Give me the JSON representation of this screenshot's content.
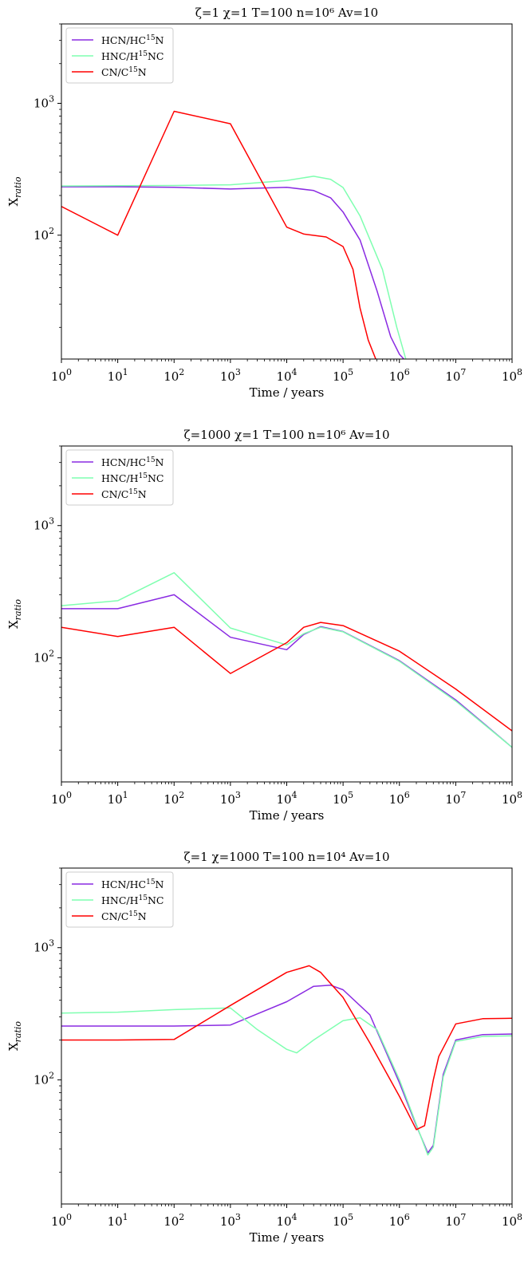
{
  "chart_data": [
    {
      "type": "line",
      "title": "ζ=1 χ=1 T=100 n=10⁶  Av=10",
      "xlabel": "Time / years",
      "ylabel": "X",
      "ylabel_sub": "ratio",
      "x_scale": "log",
      "y_scale": "log",
      "xlim": [
        1,
        100000000
      ],
      "ylim": [
        11.5,
        4000
      ],
      "x_tick_exponents": [
        0,
        1,
        2,
        3,
        4,
        5,
        6,
        7,
        8
      ],
      "y_tick_exponents": [
        2,
        3
      ],
      "legend_position": "upper-left",
      "series": [
        {
          "name": "HCN/HC¹⁵N",
          "label_base": "HCN/HC",
          "label_sup": "15",
          "label_tail": "N",
          "color": "#8a2be2",
          "points": [
            [
              1,
              233
            ],
            [
              10,
              233
            ],
            [
              100,
              231
            ],
            [
              1000,
              224
            ],
            [
              10000,
              231
            ],
            [
              30000,
              218
            ],
            [
              60000,
              192
            ],
            [
              100000,
              150
            ],
            [
              200000,
              92
            ],
            [
              400000,
              38
            ],
            [
              700000,
              17
            ],
            [
              1000000,
              12.5
            ],
            [
              1200000,
              11.5
            ]
          ]
        },
        {
          "name": "HNC/H¹⁵NC",
          "label_base": "HNC/H",
          "label_sup": "15",
          "label_tail": "NC",
          "color": "#7fffb0",
          "points": [
            [
              1,
              236
            ],
            [
              10,
              237
            ],
            [
              100,
              238
            ],
            [
              1000,
              241
            ],
            [
              10000,
              260
            ],
            [
              30000,
              280
            ],
            [
              60000,
              265
            ],
            [
              100000,
              230
            ],
            [
              200000,
              140
            ],
            [
              500000,
              55
            ],
            [
              900000,
              20
            ],
            [
              1300000,
              11.5
            ]
          ]
        },
        {
          "name": "CN/C¹⁵N",
          "label_base": "CN/C",
          "label_sup": "15",
          "label_tail": "N",
          "color": "#ff0000",
          "points": [
            [
              1,
              165
            ],
            [
              10,
              100
            ],
            [
              100,
              870
            ],
            [
              1000,
              700
            ],
            [
              10000,
              115
            ],
            [
              20000,
              102
            ],
            [
              50000,
              97
            ],
            [
              100000,
              82
            ],
            [
              150000,
              55
            ],
            [
              200000,
              28
            ],
            [
              280000,
              16
            ],
            [
              380000,
              11.5
            ]
          ]
        }
      ]
    },
    {
      "type": "line",
      "title": "ζ=1000 χ=1 T=100 n=10⁶  Av=10",
      "xlabel": "Time / years",
      "ylabel": "X",
      "ylabel_sub": "ratio",
      "x_scale": "log",
      "y_scale": "log",
      "xlim": [
        1,
        100000000
      ],
      "ylim": [
        11.5,
        4000
      ],
      "x_tick_exponents": [
        0,
        1,
        2,
        3,
        4,
        5,
        6,
        7,
        8
      ],
      "y_tick_exponents": [
        2,
        3
      ],
      "legend_position": "upper-left",
      "series": [
        {
          "name": "HCN/HC¹⁵N",
          "label_base": "HCN/HC",
          "label_sup": "15",
          "label_tail": "N",
          "color": "#8a2be2",
          "points": [
            [
              1,
              235
            ],
            [
              10,
              235
            ],
            [
              100,
              300
            ],
            [
              1000,
              143
            ],
            [
              10000,
              115
            ],
            [
              20000,
              150
            ],
            [
              40000,
              172
            ],
            [
              100000,
              158
            ],
            [
              1000000,
              95
            ],
            [
              10000000,
              48
            ],
            [
              100000000,
              21
            ]
          ]
        },
        {
          "name": "HNC/H¹⁵NC",
          "label_base": "HNC/H",
          "label_sup": "15",
          "label_tail": "NC",
          "color": "#7fffb0",
          "points": [
            [
              1,
              248
            ],
            [
              10,
              270
            ],
            [
              100,
              440
            ],
            [
              1000,
              168
            ],
            [
              10000,
              125
            ],
            [
              20000,
              152
            ],
            [
              40000,
              170
            ],
            [
              100000,
              157
            ],
            [
              1000000,
              94
            ],
            [
              10000000,
              47
            ],
            [
              100000000,
              21
            ]
          ]
        },
        {
          "name": "CN/C¹⁵N",
          "label_base": "CN/C",
          "label_sup": "15",
          "label_tail": "N",
          "color": "#ff0000",
          "points": [
            [
              1,
              170
            ],
            [
              10,
              145
            ],
            [
              100,
              170
            ],
            [
              1000,
              76
            ],
            [
              10000,
              130
            ],
            [
              20000,
              170
            ],
            [
              40000,
              185
            ],
            [
              100000,
              175
            ],
            [
              1000000,
              112
            ],
            [
              10000000,
              58
            ],
            [
              100000000,
              28
            ]
          ]
        }
      ]
    },
    {
      "type": "line",
      "title": "ζ=1 χ=1000 T=100 n=10⁴  Av=10",
      "xlabel": "Time / years",
      "ylabel": "X",
      "ylabel_sub": "ratio",
      "x_scale": "log",
      "y_scale": "log",
      "xlim": [
        1,
        100000000
      ],
      "ylim": [
        11.5,
        4000
      ],
      "x_tick_exponents": [
        0,
        1,
        2,
        3,
        4,
        5,
        6,
        7,
        8
      ],
      "y_tick_exponents": [
        2,
        3
      ],
      "legend_position": "upper-left",
      "series": [
        {
          "name": "HCN/HC¹⁵N",
          "label_base": "HCN/HC",
          "label_sup": "15",
          "label_tail": "N",
          "color": "#8a2be2",
          "points": [
            [
              1,
              255
            ],
            [
              10,
              255
            ],
            [
              100,
              255
            ],
            [
              1000,
              260
            ],
            [
              10000,
              390
            ],
            [
              30000,
              510
            ],
            [
              60000,
              520
            ],
            [
              100000,
              480
            ],
            [
              300000,
              310
            ],
            [
              1000000,
              95
            ],
            [
              2000000,
              45
            ],
            [
              3200000,
              28
            ],
            [
              4000000,
              32
            ],
            [
              6000000,
              110
            ],
            [
              10000000,
              200
            ],
            [
              30000000,
              220
            ],
            [
              100000000,
              222
            ]
          ]
        },
        {
          "name": "HNC/H¹⁵NC",
          "label_base": "HNC/H",
          "label_sup": "15",
          "label_tail": "NC",
          "color": "#7fffb0",
          "points": [
            [
              1,
              320
            ],
            [
              10,
              325
            ],
            [
              100,
              340
            ],
            [
              1000,
              350
            ],
            [
              3000,
              240
            ],
            [
              10000,
              170
            ],
            [
              15000,
              160
            ],
            [
              30000,
              200
            ],
            [
              100000,
              280
            ],
            [
              200000,
              295
            ],
            [
              400000,
              240
            ],
            [
              1000000,
              100
            ],
            [
              2000000,
              46
            ],
            [
              3200000,
              27
            ],
            [
              4000000,
              31
            ],
            [
              6000000,
              105
            ],
            [
              10000000,
              195
            ],
            [
              30000000,
              213
            ],
            [
              100000000,
              215
            ]
          ]
        },
        {
          "name": "CN/C¹⁵N",
          "label_base": "CN/C",
          "label_sup": "15",
          "label_tail": "N",
          "color": "#ff0000",
          "points": [
            [
              1,
              200
            ],
            [
              10,
              200
            ],
            [
              100,
              202
            ],
            [
              1000,
              365
            ],
            [
              10000,
              650
            ],
            [
              25000,
              730
            ],
            [
              40000,
              650
            ],
            [
              100000,
              420
            ],
            [
              300000,
              190
            ],
            [
              1000000,
              75
            ],
            [
              2000000,
              42
            ],
            [
              2800000,
              45
            ],
            [
              4000000,
              100
            ],
            [
              5000000,
              150
            ],
            [
              10000000,
              265
            ],
            [
              30000000,
              290
            ],
            [
              100000000,
              292
            ]
          ]
        }
      ]
    }
  ]
}
